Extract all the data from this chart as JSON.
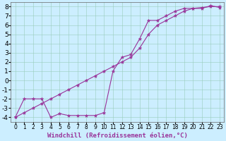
{
  "title": "",
  "xlabel": "Windchill (Refroidissement éolien,°C)",
  "ylabel": "",
  "bg_color": "#cceeff",
  "line_color": "#993399",
  "grid_color": "#99ccbb",
  "xlim": [
    -0.5,
    23.5
  ],
  "ylim": [
    -4.5,
    8.5
  ],
  "xticks": [
    0,
    1,
    2,
    3,
    4,
    5,
    6,
    7,
    8,
    9,
    10,
    11,
    12,
    13,
    14,
    15,
    16,
    17,
    18,
    19,
    20,
    21,
    22,
    23
  ],
  "yticks": [
    -4,
    -3,
    -2,
    -1,
    0,
    1,
    2,
    3,
    4,
    5,
    6,
    7,
    8
  ],
  "curve1_x": [
    0,
    1,
    2,
    3,
    4,
    5,
    6,
    7,
    8,
    9,
    10,
    11,
    12,
    13,
    14,
    15,
    16,
    17,
    18,
    19,
    20,
    21,
    22,
    23
  ],
  "curve1_y": [
    -4.0,
    -3.5,
    -3.0,
    -2.5,
    -2.0,
    -1.5,
    -1.0,
    -0.5,
    0.0,
    0.5,
    1.0,
    1.5,
    2.0,
    2.5,
    3.5,
    5.0,
    6.0,
    6.5,
    7.0,
    7.5,
    7.8,
    7.9,
    8.0,
    8.0
  ],
  "curve2_x": [
    0,
    1,
    2,
    3,
    4,
    5,
    6,
    7,
    8,
    9,
    10,
    11,
    12,
    13,
    14,
    15,
    16,
    17,
    18,
    19,
    20,
    21,
    22,
    23
  ],
  "curve2_y": [
    -4.0,
    -2.0,
    -2.0,
    -2.0,
    -4.0,
    -3.6,
    -3.8,
    -3.8,
    -3.8,
    -3.8,
    -3.5,
    1.0,
    2.5,
    2.8,
    4.5,
    6.5,
    6.5,
    7.0,
    7.5,
    7.8,
    7.8,
    7.8,
    8.1,
    7.9
  ],
  "font_size_xlabel": 6.5,
  "font_size_ytick": 6.5,
  "font_size_xtick": 5.5,
  "marker": "*",
  "marker_size": 3.5,
  "line_width": 0.8
}
